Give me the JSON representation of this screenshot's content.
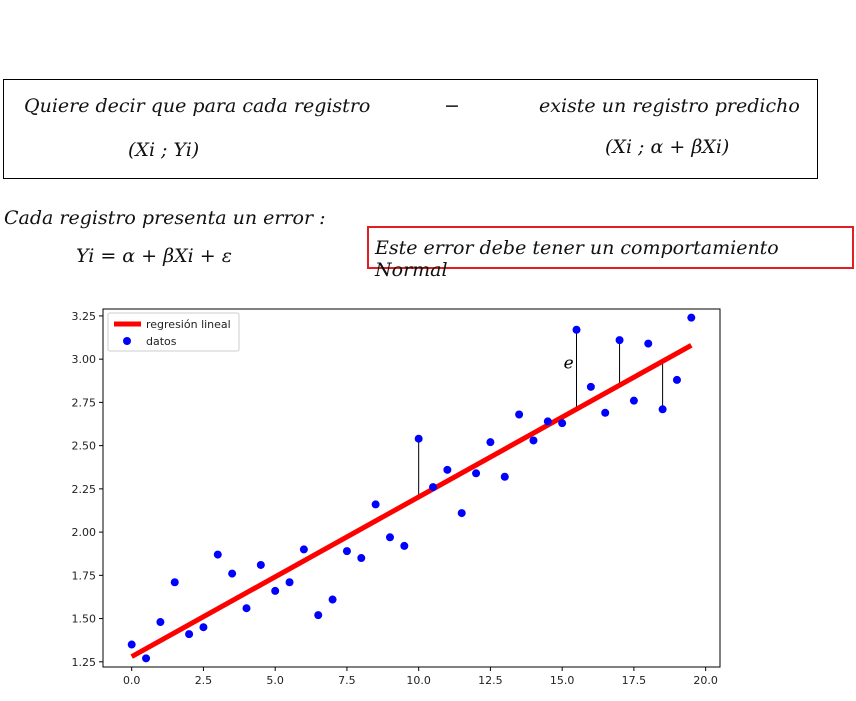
{
  "box": {
    "line1_left": "Quiere decir que para cada registro",
    "line1_mid": "−",
    "line1_right": "existe un registro predicho",
    "line2_left": "(Xi   ;   Yi)",
    "line2_right": "(Xi   ;   α + βXi)"
  },
  "error_text": {
    "heading": "Cada registro presenta un error :",
    "equation": "Yi = α + βXi + ε"
  },
  "note": "Este error debe tener un comportamiento Normal",
  "chart_data": {
    "type": "scatter",
    "xlim": [
      -1.0,
      20.5
    ],
    "ylim": [
      1.22,
      3.29
    ],
    "x_ticks": [
      0.0,
      2.5,
      5.0,
      7.5,
      10.0,
      12.5,
      15.0,
      17.5,
      20.0
    ],
    "x_tick_labels": [
      "0.0",
      "2.5",
      "5.0",
      "7.5",
      "10.0",
      "12.5",
      "15.0",
      "17.5",
      "20.0"
    ],
    "y_ticks": [
      1.25,
      1.5,
      1.75,
      2.0,
      2.25,
      2.5,
      2.75,
      3.0,
      3.25
    ],
    "y_tick_labels": [
      "1.25",
      "1.50",
      "1.75",
      "2.00",
      "2.25",
      "2.50",
      "2.75",
      "3.00",
      "3.25"
    ],
    "grid": false,
    "legend_position": "top-left",
    "series": [
      {
        "name": "regresión lineal",
        "kind": "line",
        "color": "#ff0000",
        "x": [
          0.0,
          19.5
        ],
        "y": [
          1.28,
          3.08
        ]
      },
      {
        "name": "datos",
        "kind": "scatter",
        "color": "#0000ff",
        "x": [
          0.0,
          0.5,
          1.0,
          1.5,
          2.0,
          2.5,
          3.0,
          3.5,
          4.0,
          4.5,
          5.0,
          5.5,
          6.0,
          6.5,
          7.0,
          7.5,
          8.0,
          8.5,
          9.0,
          9.5,
          10.0,
          10.5,
          11.0,
          11.5,
          12.0,
          12.5,
          13.0,
          13.5,
          14.0,
          14.5,
          15.0,
          15.5,
          16.0,
          16.5,
          17.0,
          17.5,
          18.0,
          18.5,
          19.0,
          19.5
        ],
        "y": [
          1.35,
          1.27,
          1.48,
          1.71,
          1.41,
          1.45,
          1.87,
          1.76,
          1.56,
          1.81,
          1.66,
          1.71,
          1.9,
          1.52,
          1.61,
          1.89,
          1.85,
          2.16,
          1.97,
          1.92,
          2.54,
          2.26,
          2.36,
          2.11,
          2.34,
          2.52,
          2.32,
          2.68,
          2.53,
          2.64,
          2.63,
          3.17,
          2.84,
          2.69,
          3.11,
          2.76,
          3.09,
          2.71,
          2.88,
          3.24
        ]
      }
    ],
    "residuals": [
      {
        "x": 10.0,
        "y_from": 2.2,
        "y_to": 2.54
      },
      {
        "x": 15.5,
        "y_from": 2.71,
        "y_to": 3.17
      },
      {
        "x": 17.0,
        "y_from": 2.85,
        "y_to": 3.11
      },
      {
        "x": 18.5,
        "y_from": 2.98,
        "y_to": 2.71
      }
    ],
    "annotation": {
      "text": "e",
      "x": 15.05,
      "y": 2.98
    }
  }
}
